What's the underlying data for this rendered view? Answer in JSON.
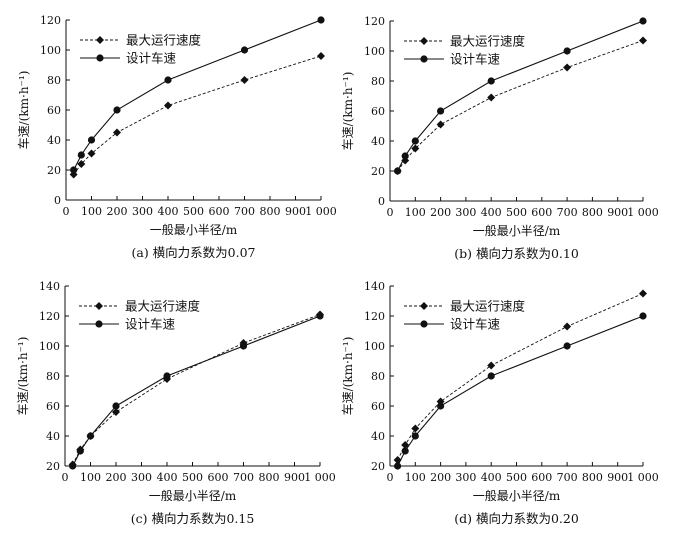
{
  "chart_data": [
    {
      "type": "line",
      "caption": "(a) 横向力系数为0.07",
      "xlabel": "一般最小半径/m",
      "ylabel": "车速/(km·h⁻¹)",
      "xlim": [
        0,
        1000
      ],
      "ylim": [
        0,
        120
      ],
      "xticks": [
        "0",
        "100",
        "200",
        "300",
        "400",
        "500",
        "600",
        "700",
        "800",
        "900",
        "1 000"
      ],
      "yticks": [
        "0",
        "20",
        "40",
        "60",
        "80",
        "100",
        "120"
      ],
      "legend_position": "top-left",
      "series": [
        {
          "name": "最大运行速度",
          "style": "dashed",
          "marker": "diamond",
          "x": [
            30,
            60,
            100,
            200,
            400,
            700,
            1000
          ],
          "y": [
            17,
            24,
            31,
            45,
            63,
            80,
            96
          ]
        },
        {
          "name": "设计车速",
          "style": "solid",
          "marker": "circle",
          "x": [
            30,
            60,
            100,
            200,
            400,
            700,
            1000
          ],
          "y": [
            20,
            30,
            40,
            60,
            80,
            100,
            120
          ]
        }
      ]
    },
    {
      "type": "line",
      "caption": "(b) 横向力系数为0.10",
      "xlabel": "一般最小半径/m",
      "ylabel": "车速/(km·h⁻¹)",
      "xlim": [
        0,
        1000
      ],
      "ylim": [
        0,
        120
      ],
      "xticks": [
        "0",
        "100",
        "200",
        "300",
        "400",
        "500",
        "600",
        "700",
        "800",
        "900",
        "1 000"
      ],
      "yticks": [
        "0",
        "20",
        "40",
        "60",
        "80",
        "100",
        "120"
      ],
      "legend_position": "top-left",
      "series": [
        {
          "name": "最大运行速度",
          "style": "dashed",
          "marker": "diamond",
          "x": [
            30,
            60,
            100,
            200,
            400,
            700,
            1000
          ],
          "y": [
            20,
            27,
            35,
            51,
            69,
            89,
            107
          ]
        },
        {
          "name": "设计车速",
          "style": "solid",
          "marker": "circle",
          "x": [
            30,
            60,
            100,
            200,
            400,
            700,
            1000
          ],
          "y": [
            20,
            30,
            40,
            60,
            80,
            100,
            120
          ]
        }
      ]
    },
    {
      "type": "line",
      "caption": "(c) 横向力系数为0.15",
      "xlabel": "一般最小半径/m",
      "ylabel": "车速/(km·h⁻¹)",
      "xlim": [
        0,
        1000
      ],
      "ylim": [
        20,
        140
      ],
      "xticks": [
        "0",
        "100",
        "200",
        "300",
        "400",
        "500",
        "600",
        "700",
        "800",
        "900",
        "1 000"
      ],
      "yticks": [
        "20",
        "40",
        "60",
        "80",
        "100",
        "120",
        "140"
      ],
      "legend_position": "top-left",
      "series": [
        {
          "name": "最大运行速度",
          "style": "dashed",
          "marker": "diamond",
          "x": [
            30,
            60,
            100,
            200,
            400,
            700,
            1000
          ],
          "y": [
            21,
            31,
            40,
            56,
            78,
            102,
            121
          ]
        },
        {
          "name": "设计车速",
          "style": "solid",
          "marker": "circle",
          "x": [
            30,
            60,
            100,
            200,
            400,
            700,
            1000
          ],
          "y": [
            20,
            30,
            40,
            60,
            80,
            100,
            120
          ]
        }
      ]
    },
    {
      "type": "line",
      "caption": "(d) 横向力系数为0.20",
      "xlabel": "一般最小半径/m",
      "ylabel": "车速/(km·h⁻¹)",
      "xlim": [
        0,
        1000
      ],
      "ylim": [
        20,
        140
      ],
      "xticks": [
        "0",
        "100",
        "200",
        "300",
        "400",
        "500",
        "600",
        "700",
        "800",
        "900",
        "1 000"
      ],
      "yticks": [
        "20",
        "40",
        "60",
        "80",
        "100",
        "120",
        "140"
      ],
      "legend_position": "top-left",
      "series": [
        {
          "name": "最大运行速度",
          "style": "dashed",
          "marker": "diamond",
          "x": [
            30,
            60,
            100,
            200,
            400,
            700,
            1000
          ],
          "y": [
            24,
            34,
            45,
            63,
            87,
            113,
            135
          ]
        },
        {
          "name": "设计车速",
          "style": "solid",
          "marker": "circle",
          "x": [
            30,
            60,
            100,
            200,
            400,
            700,
            1000
          ],
          "y": [
            20,
            30,
            40,
            60,
            80,
            100,
            120
          ]
        }
      ]
    }
  ]
}
